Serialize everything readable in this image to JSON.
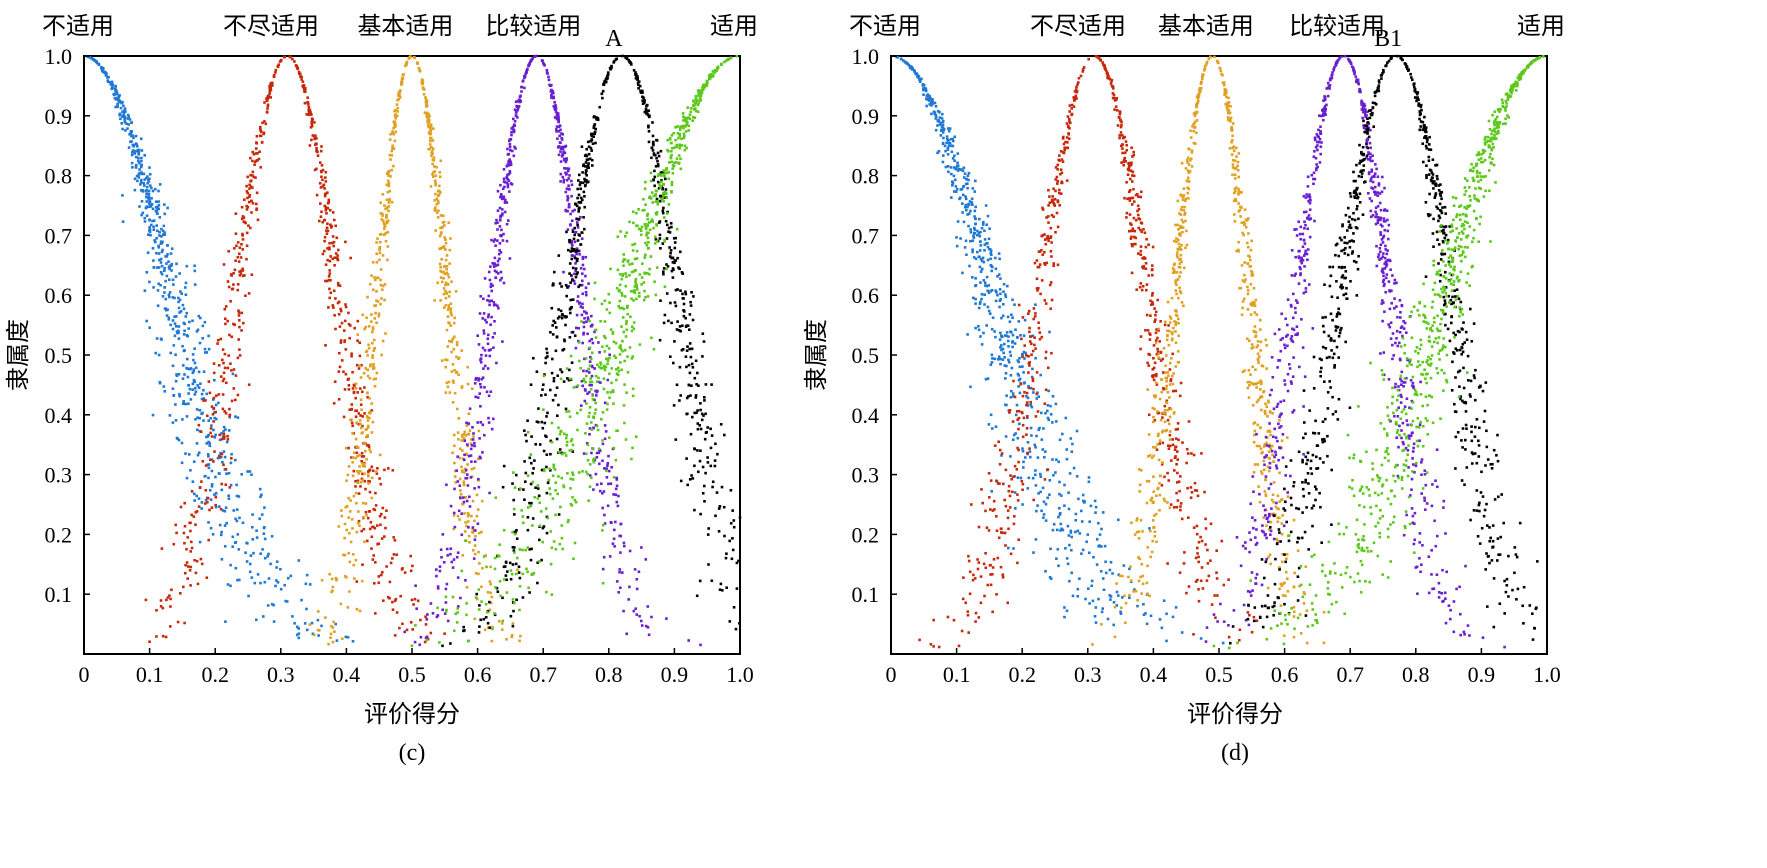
{
  "chart_data": [
    {
      "type": "scatter",
      "panel_label": "(c)",
      "marker_label": "A",
      "marker_x": 0.82,
      "xlabel": "评价得分",
      "ylabel": "隶属度",
      "xlim": [
        0,
        1.0
      ],
      "ylim": [
        0,
        1.0
      ],
      "x_ticks": [
        "0",
        "0.1",
        "0.2",
        "0.3",
        "0.4",
        "0.5",
        "0.6",
        "0.7",
        "0.8",
        "0.9",
        "1.0"
      ],
      "y_ticks": [
        "0.1",
        "0.2",
        "0.3",
        "0.4",
        "0.5",
        "0.6",
        "0.7",
        "0.8",
        "0.9",
        "1.0"
      ],
      "category_labels": [
        {
          "text": "不适用",
          "x": 0.0
        },
        {
          "text": "不尽适用",
          "x": 0.285
        },
        {
          "text": "基本适用",
          "x": 0.49
        },
        {
          "text": "比较适用",
          "x": 0.685
        },
        {
          "text": "适用",
          "x": 0.985
        }
      ],
      "series": [
        {
          "color": "#1f78d4",
          "shape": "left",
          "peak": 0.0,
          "width": 0.19
        },
        {
          "color": "#c8280a",
          "shape": "bell",
          "peak": 0.31,
          "width": 0.11
        },
        {
          "color": "#e0a020",
          "shape": "bell",
          "peak": 0.5,
          "width": 0.075
        },
        {
          "color": "#6a1fd0",
          "shape": "bell",
          "peak": 0.69,
          "width": 0.095
        },
        {
          "color": "#000000",
          "shape": "bell",
          "peak": 0.82,
          "width": 0.12
        },
        {
          "color": "#5cc81a",
          "shape": "right",
          "peak": 1.0,
          "width": 0.24
        }
      ]
    },
    {
      "type": "scatter",
      "panel_label": "(d)",
      "marker_label": "B1",
      "marker_x": 0.77,
      "xlabel": "评价得分",
      "ylabel": "隶属度",
      "xlim": [
        0,
        1.0
      ],
      "ylim": [
        0,
        1.0
      ],
      "x_ticks": [
        "0",
        "0.1",
        "0.2",
        "0.3",
        "0.4",
        "0.5",
        "0.6",
        "0.7",
        "0.8",
        "0.9",
        "1.0"
      ],
      "y_ticks": [
        "0.1",
        "0.2",
        "0.3",
        "0.4",
        "0.5",
        "0.6",
        "0.7",
        "0.8",
        "0.9",
        "1.0"
      ],
      "category_labels": [
        {
          "text": "不适用",
          "x": 0.0
        },
        {
          "text": "不尽适用",
          "x": 0.285
        },
        {
          "text": "基本适用",
          "x": 0.48
        },
        {
          "text": "比较适用",
          "x": 0.68
        },
        {
          "text": "适用",
          "x": 0.985
        }
      ],
      "series": [
        {
          "color": "#1f78d4",
          "shape": "left",
          "peak": 0.0,
          "width": 0.22
        },
        {
          "color": "#c8280a",
          "shape": "bell",
          "peak": 0.31,
          "width": 0.115
        },
        {
          "color": "#e0a020",
          "shape": "bell",
          "peak": 0.49,
          "width": 0.08
        },
        {
          "color": "#6a1fd0",
          "shape": "bell",
          "peak": 0.69,
          "width": 0.1
        },
        {
          "color": "#000000",
          "shape": "bell",
          "peak": 0.77,
          "width": 0.12
        },
        {
          "color": "#5cc81a",
          "shape": "right",
          "peak": 1.0,
          "width": 0.22
        }
      ]
    }
  ]
}
